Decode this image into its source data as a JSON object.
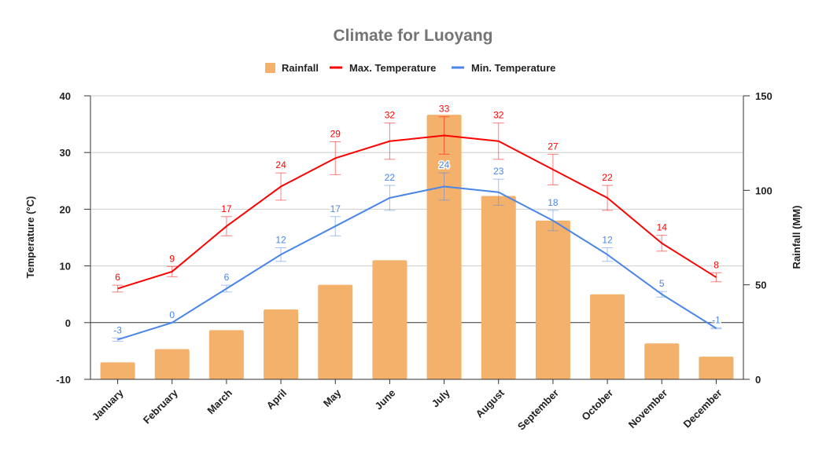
{
  "chart_data": {
    "type": "bar+line",
    "title": "Climate for Luoyang",
    "categories": [
      "January",
      "February",
      "March",
      "April",
      "May",
      "June",
      "July",
      "August",
      "September",
      "October",
      "November",
      "December"
    ],
    "series": [
      {
        "name": "Rainfall",
        "type": "bar",
        "axis": "right",
        "color": "#f4b16b",
        "values": [
          9,
          16,
          26,
          37,
          50,
          63,
          140,
          97,
          84,
          45,
          19,
          12
        ]
      },
      {
        "name": "Max. Temperature",
        "type": "line",
        "axis": "left",
        "color": "#ff0000",
        "values": [
          6,
          9,
          17,
          24,
          29,
          32,
          33,
          32,
          27,
          22,
          14,
          8
        ]
      },
      {
        "name": "Min. Temperature",
        "type": "line",
        "axis": "left",
        "color": "#4a86e8",
        "values": [
          -3,
          0,
          6,
          12,
          17,
          22,
          24,
          23,
          18,
          12,
          5,
          -1
        ]
      }
    ],
    "error_bars_percent": 10,
    "ylabel_left": "Temperature (°C)",
    "ylabel_right": "Rainfall (MM)",
    "ylim_left": [
      -10,
      40
    ],
    "yticks_left": [
      -10,
      0,
      10,
      20,
      30,
      40
    ],
    "ylim_right": [
      0,
      150
    ],
    "yticks_right": [
      0,
      50,
      100,
      150
    ],
    "grid": true,
    "legend": "top"
  }
}
